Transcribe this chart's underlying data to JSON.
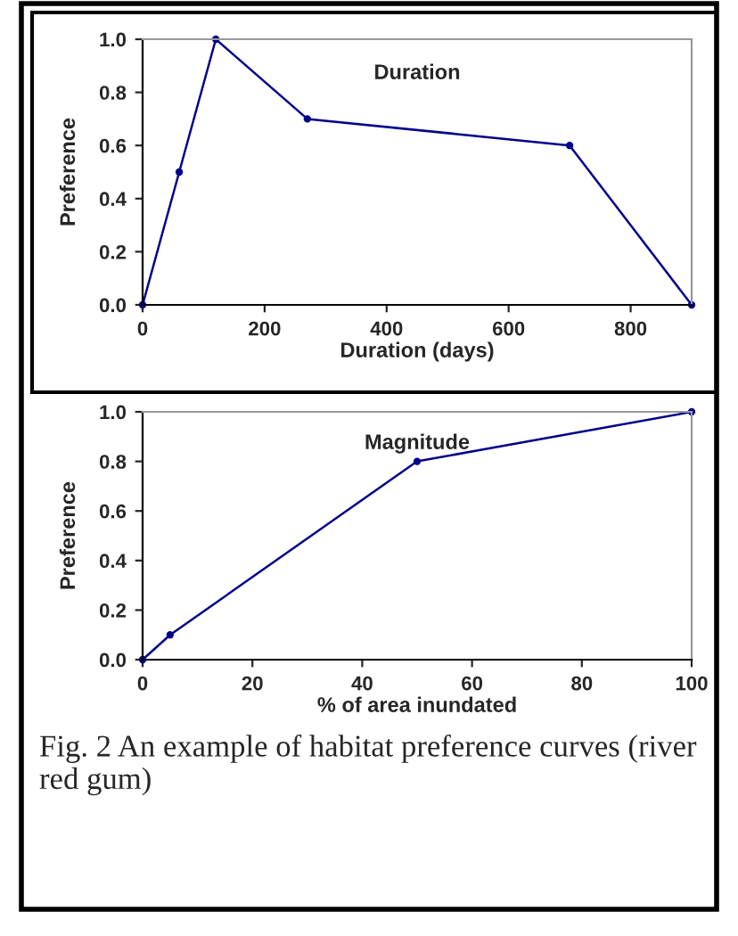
{
  "chart_data": [
    {
      "type": "line",
      "title": "Duration",
      "xlabel": "Duration (days)",
      "ylabel": "Preference",
      "x": [
        0,
        60,
        120,
        270,
        700,
        900
      ],
      "series": [
        {
          "color": "#00008b",
          "values": [
            0,
            0.5,
            1.0,
            0.7,
            0.6,
            0
          ]
        }
      ],
      "xlim": [
        0,
        900
      ],
      "xticks": [
        0,
        200,
        400,
        600,
        800
      ],
      "ylim": [
        0,
        1.0
      ],
      "yticks": [
        {
          "value": 0,
          "label": "0.0"
        },
        {
          "value": 0.2,
          "label": "0.2"
        },
        {
          "value": 0.4,
          "label": "0.4"
        },
        {
          "value": 0.6,
          "label": "0.6"
        },
        {
          "value": 0.8,
          "label": "0.8"
        },
        {
          "value": 1.0,
          "label": "1.0"
        }
      ],
      "grid": false,
      "marker": "circle",
      "line_style": "solid"
    },
    {
      "type": "line",
      "title": "Magnitude",
      "xlabel": "% of area inundated",
      "ylabel": "Preference",
      "x": [
        0,
        5,
        50,
        100
      ],
      "series": [
        {
          "color": "#00008b",
          "values": [
            0,
            0.1,
            0.8,
            1.0
          ]
        }
      ],
      "xlim": [
        0,
        100
      ],
      "xticks": [
        0,
        20,
        40,
        60,
        80,
        100
      ],
      "ylim": [
        0,
        1.0
      ],
      "yticks": [
        {
          "value": 0,
          "label": "0.0"
        },
        {
          "value": 0.2,
          "label": "0.2"
        },
        {
          "value": 0.4,
          "label": "0.4"
        },
        {
          "value": 0.6,
          "label": "0.6"
        },
        {
          "value": 0.8,
          "label": "0.8"
        },
        {
          "value": 1.0,
          "label": "1.0"
        }
      ],
      "grid": false,
      "marker": "circle",
      "line_style": "solid",
      "annotations": [
        "Fig. 2 An example of habitat preference curves (river red gum)"
      ]
    }
  ]
}
